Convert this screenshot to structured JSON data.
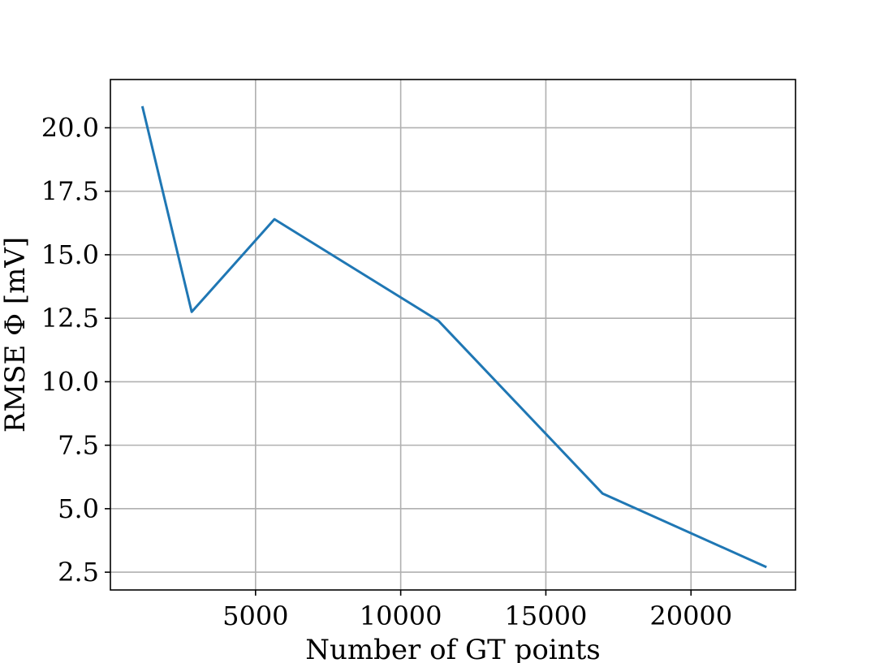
{
  "chart_data": {
    "type": "line",
    "title": "",
    "xlabel": "Number of GT points",
    "ylabel": "RMSE Φ [mV]",
    "xlim": [
      0,
      23600
    ],
    "ylim": [
      1.8,
      21.9
    ],
    "grid": true,
    "x_ticks": [
      5000,
      10000,
      15000,
      20000
    ],
    "y_ticks": [
      2.5,
      5.0,
      7.5,
      10.0,
      12.5,
      15.0,
      17.5,
      20.0
    ],
    "x_tick_labels": [
      "5000",
      "10000",
      "15000",
      "20000"
    ],
    "y_tick_labels": [
      "2.5",
      "5.0",
      "7.5",
      "10.0",
      "12.5",
      "15.0",
      "17.5",
      "20.0"
    ],
    "series": [
      {
        "color": "#1f77b4",
        "x": [
          1100,
          2800,
          5650,
          11300,
          16950,
          22600
        ],
        "y": [
          20.85,
          12.75,
          16.4,
          12.4,
          5.6,
          2.7
        ]
      }
    ]
  }
}
